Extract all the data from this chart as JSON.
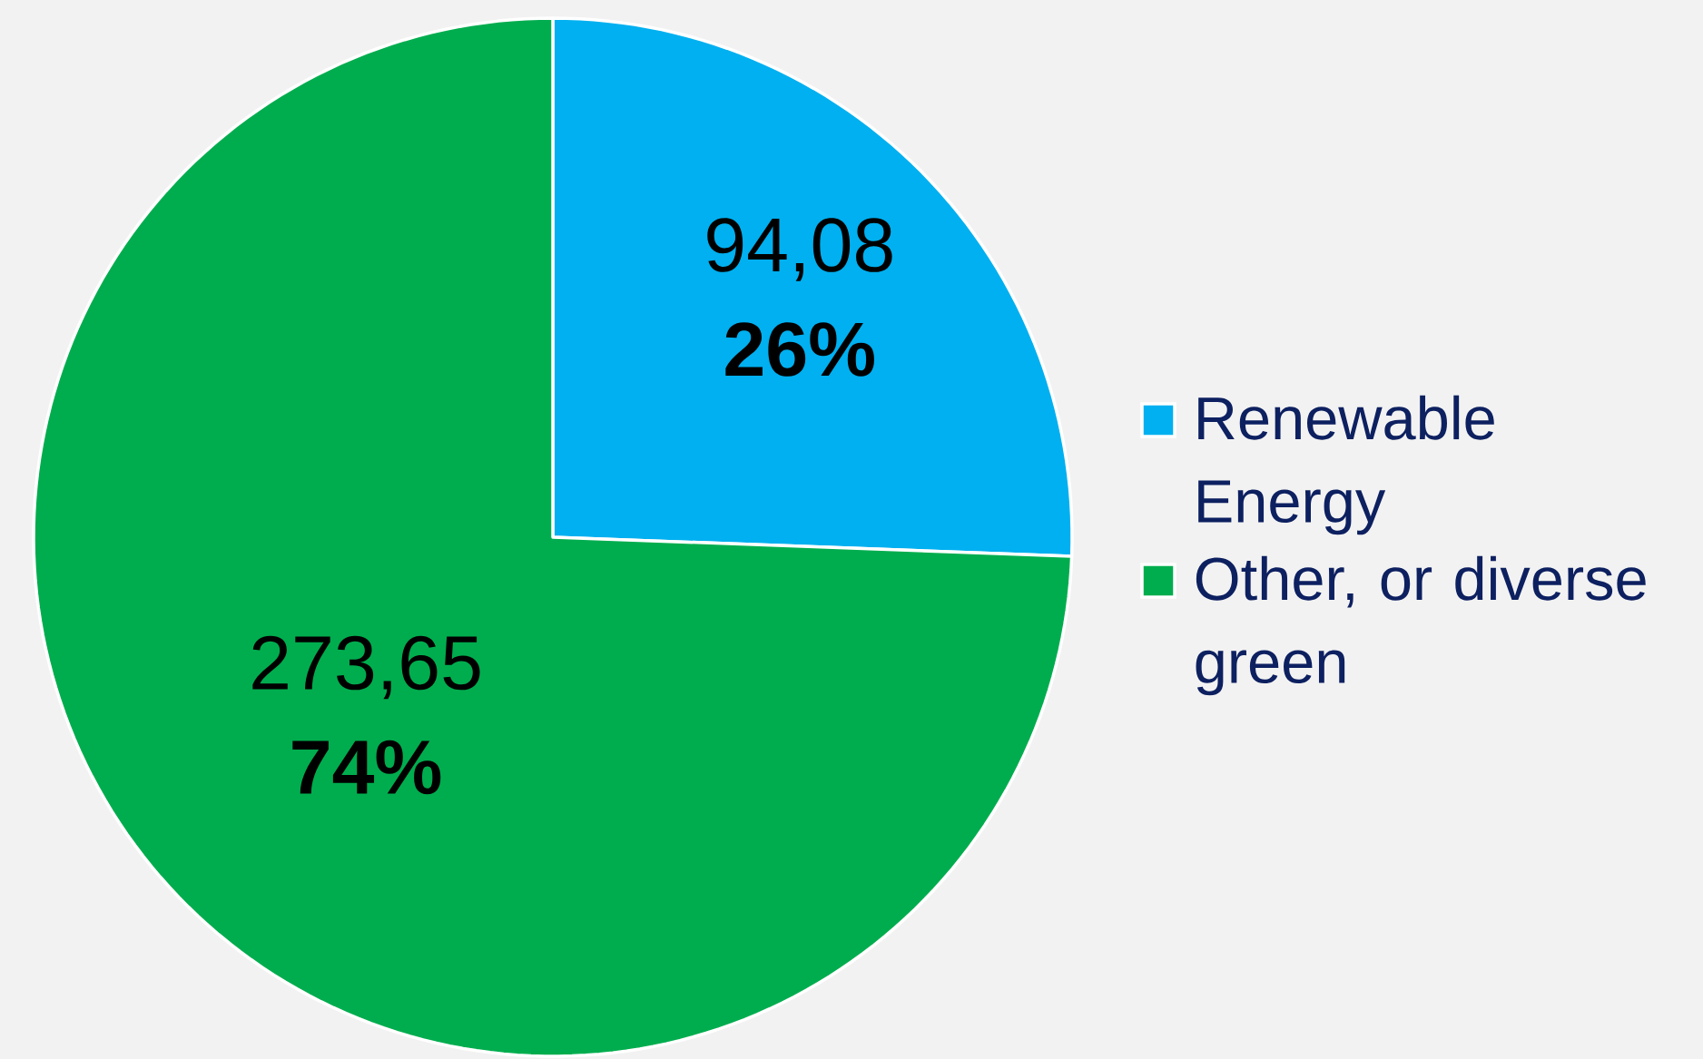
{
  "chart_data": {
    "type": "pie",
    "categories": [
      "Renewable Energy",
      "Other, or diverse green"
    ],
    "values": [
      94.08,
      273.65
    ],
    "colors": [
      "#00b0f0",
      "#00ad4e"
    ],
    "value_labels": [
      "94,08",
      "273,65"
    ],
    "annotations": [
      "26%",
      "74%"
    ],
    "legend": "right"
  }
}
